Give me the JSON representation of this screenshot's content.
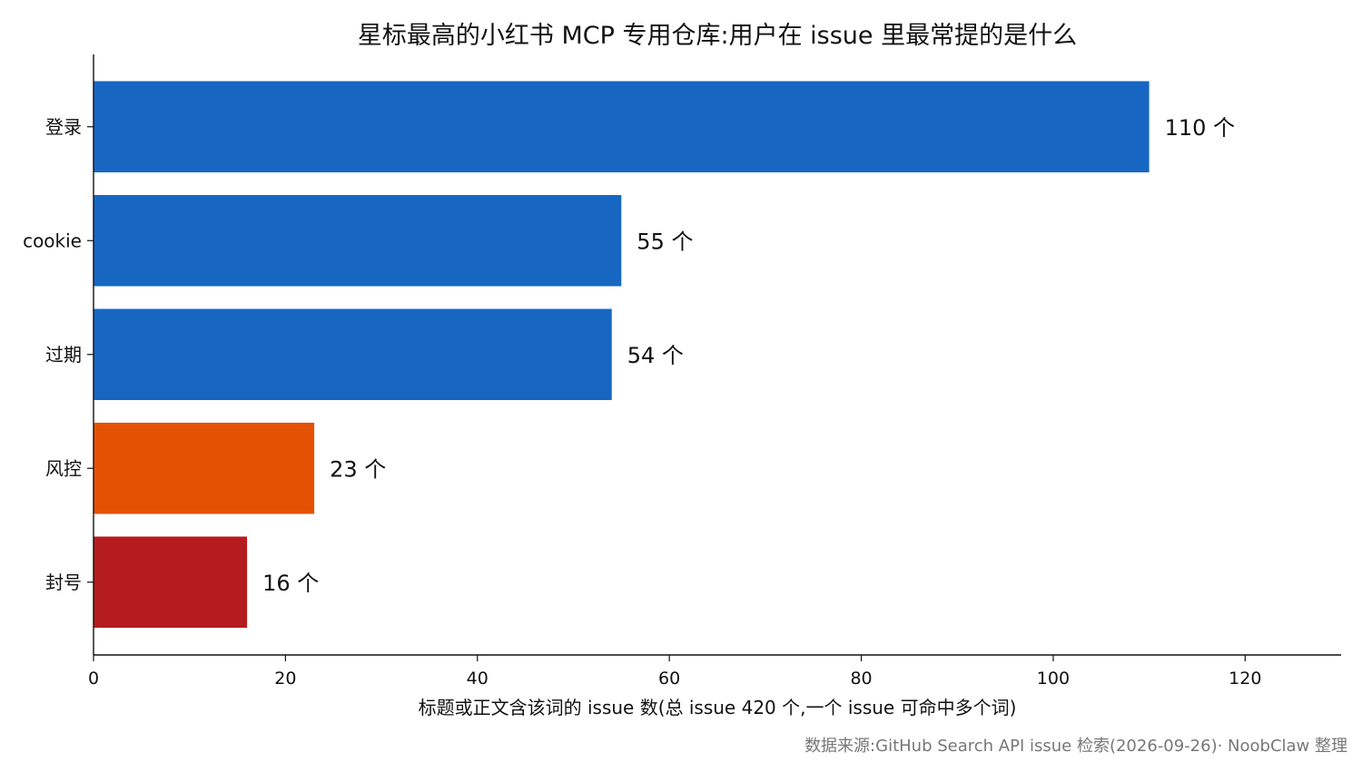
{
  "chart_data": {
    "type": "bar",
    "orientation": "horizontal",
    "title": "星标最高的小红书 MCP 专用仓库:用户在 issue 里最常提的是什么",
    "categories": [
      "登录",
      "cookie",
      "过期",
      "风控",
      "封号"
    ],
    "values": [
      110,
      55,
      54,
      23,
      16
    ],
    "value_labels": [
      "110 个",
      "55 个",
      "54 个",
      "23 个",
      "16 个"
    ],
    "bar_colors": [
      "#1767c2",
      "#1767c2",
      "#1767c2",
      "#e55102",
      "#b41c1f"
    ],
    "xlabel": "标题或正文含该词的 issue 数(总 issue 420 个,一个 issue 可命中多个词)",
    "ylabel": "",
    "xlim": [
      0,
      130
    ],
    "xticks": [
      0,
      20,
      40,
      60,
      80,
      100,
      120
    ],
    "grid": false,
    "legend": "none"
  },
  "source_note": "数据来源:GitHub Search API issue 检索(2026-09-26)· NoobClaw 整理"
}
